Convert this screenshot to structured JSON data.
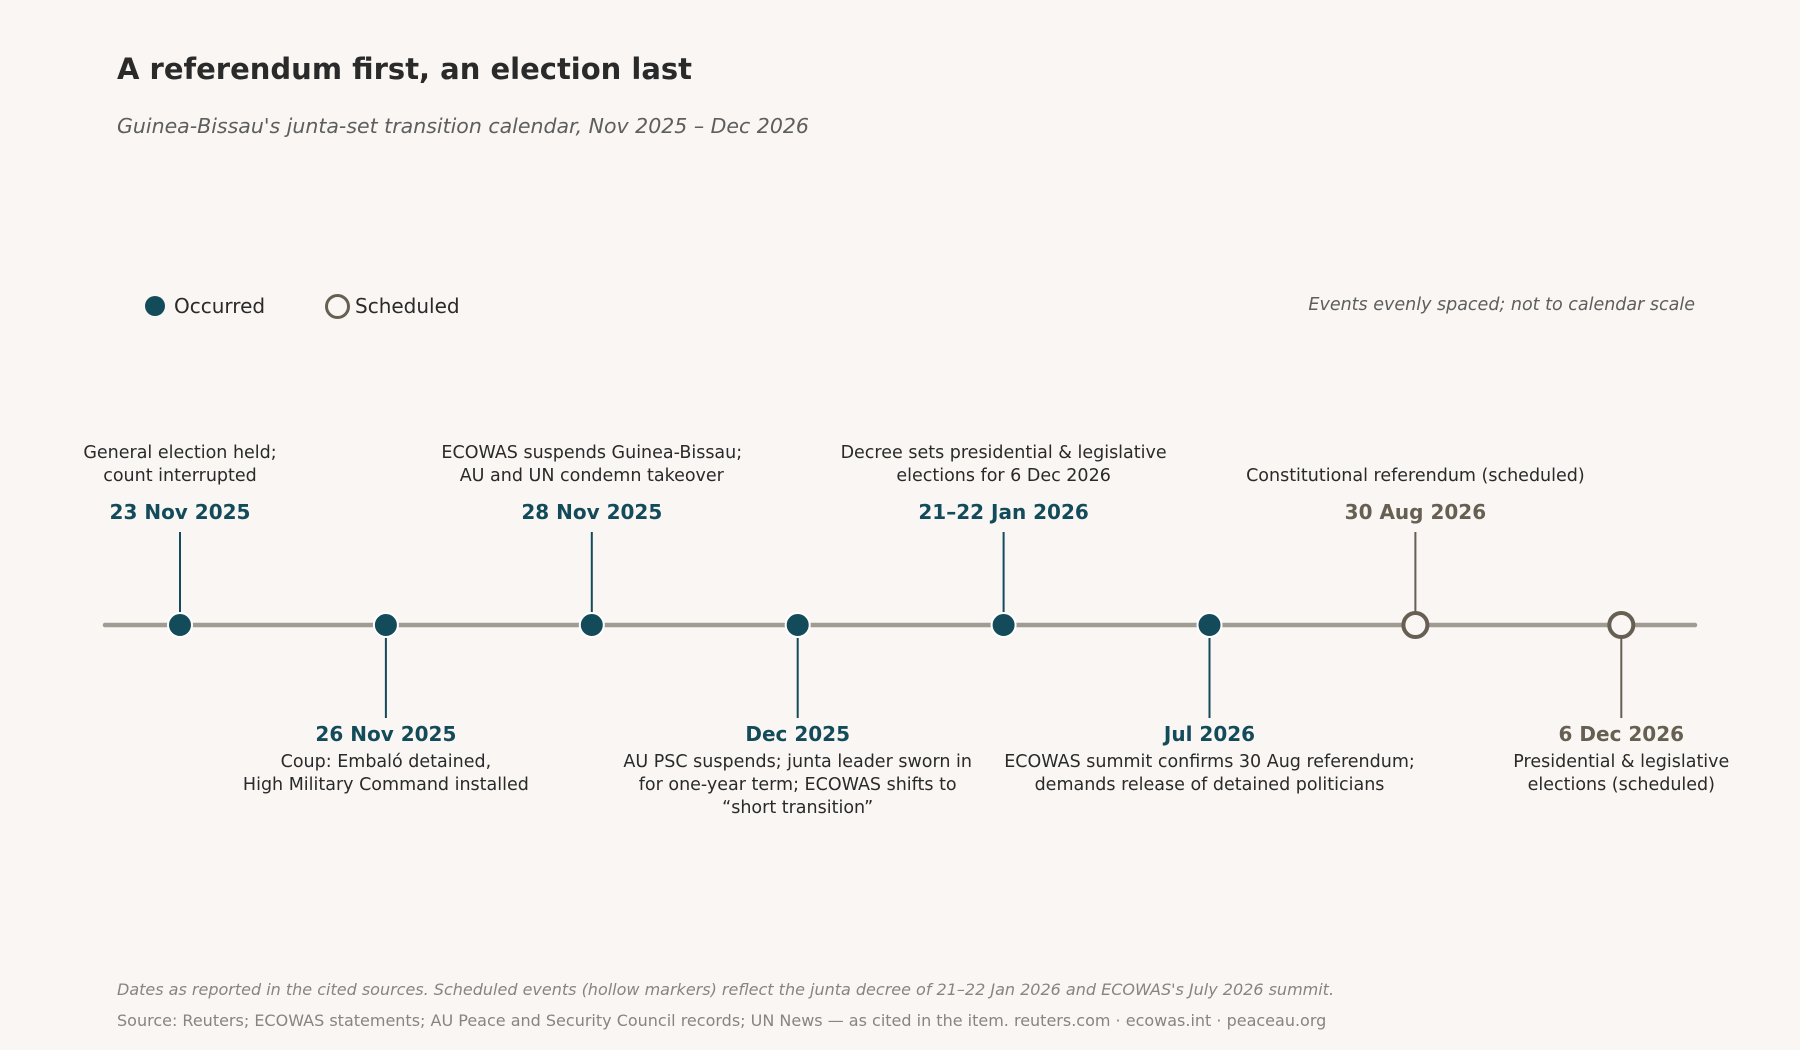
{
  "title": "A referendum first, an election last",
  "subtitle": "Guinea-Bissau's junta-set transition calendar, Nov 2025 – Dec 2026",
  "legend": {
    "occurred": "Occurred",
    "scheduled": "Scheduled"
  },
  "scale_note": "Events evenly spaced; not to calendar scale",
  "events": [
    {
      "date": "23 Nov 2025",
      "description": "General election held;\ncount interrupted",
      "status": "occurred",
      "label_side": "above"
    },
    {
      "date": "26 Nov 2025",
      "description": "Coup: Embaló detained,\nHigh Military Command installed",
      "status": "occurred",
      "label_side": "below"
    },
    {
      "date": "28 Nov 2025",
      "description": "ECOWAS suspends Guinea-Bissau;\nAU and UN condemn takeover",
      "status": "occurred",
      "label_side": "above"
    },
    {
      "date": "Dec 2025",
      "description": "AU PSC suspends; junta leader sworn in\nfor one-year term; ECOWAS shifts to\n“short transition”",
      "status": "occurred",
      "label_side": "below"
    },
    {
      "date": "21–22 Jan 2026",
      "description": "Decree sets presidential & legislative\nelections for 6 Dec 2026",
      "status": "occurred",
      "label_side": "above"
    },
    {
      "date": "Jul 2026",
      "description": "ECOWAS summit confirms 30 Aug referendum;\ndemands release of detained politicians",
      "status": "occurred",
      "label_side": "below"
    },
    {
      "date": "30 Aug 2026",
      "description": "Constitutional referendum (scheduled)",
      "status": "scheduled",
      "label_side": "above"
    },
    {
      "date": "6 Dec 2026",
      "description": "Presidential & legislative\nelections (scheduled)",
      "status": "scheduled",
      "label_side": "below"
    }
  ],
  "colors": {
    "occurred": "#134b5a",
    "scheduled": "#665f52",
    "axis": "#a09c94",
    "background": "#f9f6f3"
  },
  "footer": {
    "note": "Dates as reported in the cited sources. Scheduled events (hollow markers) reflect the junta decree of 21–22 Jan 2026 and ECOWAS's July 2026 summit.",
    "source": "Source: Reuters; ECOWAS statements; AU Peace and Security Council records; UN News — as cited in the item. reuters.com · ecowas.int · peaceau.org"
  }
}
